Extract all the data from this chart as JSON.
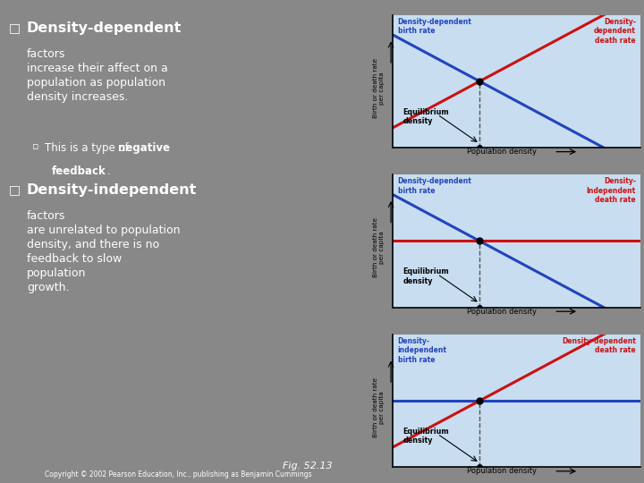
{
  "bg_left_top": "#999999",
  "bg_left_bottom": "#666666",
  "bg_graph": "#c8ddf0",
  "bg_outer": "#f5f0d0",
  "birth_color": "#2244bb",
  "death_color": "#cc1111",
  "text_white": "#ffffff",
  "text_dark": "#111111",
  "fig_label": "Fig. 52.13",
  "copyright": "Copyright © 2002 Pearson Education, Inc., publishing as Benjamin Cummings",
  "graphs": [
    {
      "birth_label": "Density-dependent\nbirth rate",
      "death_label": "Density-\ndependent\ndeath rate",
      "birth_slope": -1.0,
      "death_slope": 1.0,
      "birth_intercept": 0.85,
      "death_intercept": 0.15
    },
    {
      "birth_label": "Density-dependent\nbirth rate",
      "death_label": "Density-\nIndependent\ndeath rate",
      "birth_slope": -1.0,
      "death_slope": 0.0,
      "birth_intercept": 0.85,
      "death_intercept": 0.5
    },
    {
      "birth_label": "Density-\nindependent\nbirth rate",
      "death_label": "Density-dependent\ndeath rate",
      "birth_slope": 0.0,
      "death_slope": 1.0,
      "birth_intercept": 0.5,
      "death_intercept": 0.15
    }
  ]
}
